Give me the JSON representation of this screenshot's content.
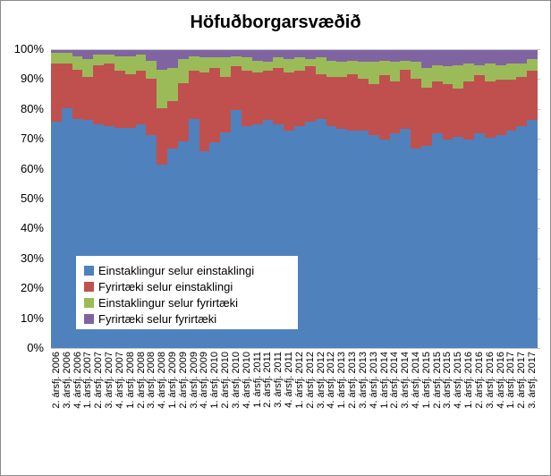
{
  "ui": {
    "background_color": "#ffffff",
    "border_color": "#8c8c8c",
    "gridline_color": "#c6c6c6",
    "text_color": "#000000"
  },
  "legend": {
    "position": "inside-left-bottom",
    "items": [
      {
        "label": "Einstaklingur selur einstaklingi",
        "color": "#4f81bd"
      },
      {
        "label": "Fyrirtæki selur einstaklingi",
        "color": "#c0504d"
      },
      {
        "label": "Einstaklingur selur fyrirtæki",
        "color": "#9bbb59"
      },
      {
        "label": "Fyrirtæki selur fyrirtæki",
        "color": "#8064a2"
      }
    ]
  },
  "chart_data": {
    "type": "bar",
    "subtype": "stacked-100-percent-columns-no-gap",
    "title": "Höfuðborgarsvæðið",
    "xlabel": "",
    "ylabel": "",
    "ylim": [
      0,
      100
    ],
    "y_ticks": [
      "0%",
      "10%",
      "20%",
      "30%",
      "40%",
      "50%",
      "60%",
      "70%",
      "80%",
      "90%",
      "100%"
    ],
    "grid": "major-horizontal",
    "legend_position": "inside plot, lower left, white background",
    "stack_order_bottom_to_top": [
      "Einstaklingur selur einstaklingi",
      "Fyrirtæki selur einstaklingi",
      "Einstaklingur selur fyrirtæki",
      "Fyrirtæki selur fyrirtæki"
    ],
    "categories": [
      "2. ársfj. 2006",
      "3. ársfj. 2006",
      "4. ársfj. 2006",
      "1. ársfj. 2007",
      "2. ársfj. 2007",
      "3. ársfj. 2007",
      "4. ársfj. 2007",
      "1. ársfj. 2008",
      "2. ársfj. 2008",
      "3. ársfj. 2008",
      "4. ársfj. 2008",
      "1. ársfj. 2009",
      "2. ársfj. 2009",
      "3. ársfj. 2009",
      "4. ársfj. 2009",
      "1. ársfj. 2010",
      "2. ársfj. 2010",
      "3. ársfj. 2010",
      "4. ársfj. 2010",
      "1. ársfj. 2011",
      "2. ársfj. 2011",
      "3. ársfj. 2011",
      "4. ársfj. 2011",
      "1. ársfj. 2012",
      "2. ársfj. 2012",
      "3. ársfj. 2012",
      "4. ársfj. 2012",
      "1. ársfj. 2013",
      "2. ársfj. 2013",
      "3. ársfj. 2013",
      "4. ársfj. 2013",
      "1. ársfj. 2014",
      "2. ársfj. 2014",
      "3. ársfj. 2014",
      "4. ársfj. 2014",
      "1. ársfj. 2015",
      "2. ársfj. 2015",
      "3. ársfj. 2015",
      "4. ársfj. 2015",
      "1. ársfj. 2016",
      "2. ársfj. 2016",
      "3. ársfj. 2016",
      "4. ársfj. 2016",
      "1. ársfj. 2017",
      "2. ársfj. 2017",
      "3. ársfj. 2017"
    ],
    "series": [
      {
        "name": "Einstaklingur selur einstaklingi",
        "color": "#4f81bd",
        "values": [
          76,
          80.5,
          77,
          76.5,
          75,
          74.5,
          74,
          74,
          75,
          71.5,
          61.5,
          67,
          69.5,
          77,
          66,
          69,
          72.5,
          80,
          74.5,
          75,
          76.5,
          75,
          73,
          74.5,
          76,
          77,
          74.5,
          73.5,
          73,
          73,
          71.5,
          70,
          72,
          73.5,
          67,
          68,
          72,
          70,
          71,
          70,
          72,
          70.5,
          71.5,
          73,
          74.5,
          76.5
        ]
      },
      {
        "name": "Fyrirtæki selur einstaklingi",
        "color": "#c0504d",
        "values": [
          19.5,
          15,
          16.5,
          14.5,
          20,
          21,
          19,
          18,
          18,
          19,
          19,
          16,
          19.5,
          16,
          26.5,
          25,
          18.5,
          14.5,
          18.5,
          17.5,
          16.5,
          19,
          19.5,
          18.5,
          18.5,
          15,
          16.5,
          17.5,
          19,
          17.5,
          17,
          21.5,
          17.5,
          20,
          23.5,
          19.5,
          17.5,
          18.5,
          16,
          19.5,
          19.5,
          19,
          18.5,
          17,
          16.5,
          16.5
        ]
      },
      {
        "name": "Einstaklingur selur fyrirtæki",
        "color": "#9bbb59",
        "values": [
          3.5,
          3.5,
          4.5,
          6,
          3.5,
          3,
          5,
          6,
          5.5,
          6,
          13,
          11,
          8,
          5,
          5,
          3.5,
          6.5,
          3.5,
          4.5,
          4,
          3,
          3.5,
          4.5,
          4.5,
          2.5,
          5.5,
          5.5,
          5,
          4.5,
          5.5,
          7.5,
          5,
          6.5,
          3,
          5.5,
          6.5,
          5.5,
          6,
          8,
          6,
          3.5,
          6,
          5,
          5.5,
          4.5,
          4
        ]
      },
      {
        "name": "Fyrirtæki selur fyrirtæki",
        "color": "#8064a2",
        "values": [
          1,
          1,
          2,
          3,
          1.5,
          1.5,
          2,
          2,
          1.5,
          3.5,
          6.5,
          6,
          3,
          2,
          2.5,
          2.5,
          2.5,
          2,
          2.5,
          3.5,
          4,
          2.5,
          3,
          2.5,
          3,
          2.5,
          3.5,
          4,
          3.5,
          4,
          4,
          3.5,
          4,
          3.5,
          4,
          6,
          5,
          5.5,
          5,
          4.5,
          5,
          4.5,
          5,
          4.5,
          4.5,
          3
        ]
      }
    ]
  }
}
